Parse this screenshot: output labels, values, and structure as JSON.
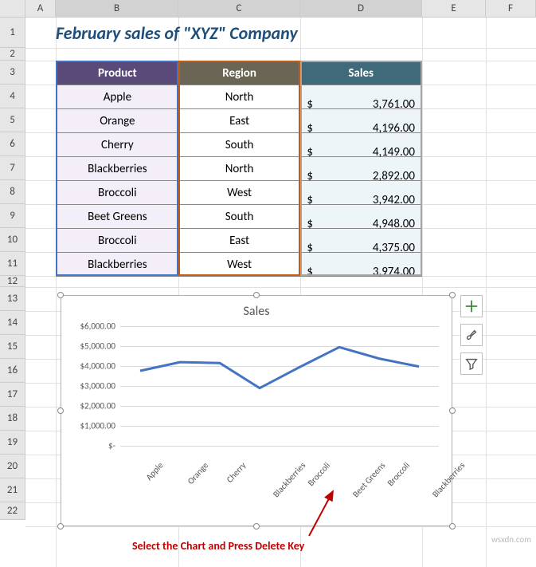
{
  "title": "February sales of \"XYZ\" Company",
  "columns": {
    "A": "A",
    "B": "B",
    "C": "C",
    "D": "D",
    "E": "E",
    "F": "F"
  },
  "rows": [
    "1",
    "2",
    "3",
    "4",
    "5",
    "6",
    "7",
    "8",
    "9",
    "10",
    "11",
    "12",
    "13",
    "14",
    "15",
    "16",
    "17",
    "18",
    "19",
    "20",
    "21",
    "22"
  ],
  "table": {
    "headers": {
      "b": "Product",
      "c": "Region",
      "d": "Sales"
    },
    "header_colors": {
      "b": "#5a4a7a",
      "c": "#6b6555",
      "d": "#3f6a7a"
    },
    "body_colors": {
      "b": "#f3eef8",
      "c": "#ffffff",
      "d": "#eef5f8"
    },
    "currency": "$",
    "rows": [
      {
        "product": "Apple",
        "region": "North",
        "sales": "3,761.00"
      },
      {
        "product": "Orange",
        "region": "East",
        "sales": "4,196.00"
      },
      {
        "product": "Cherry",
        "region": "South",
        "sales": "4,149.00"
      },
      {
        "product": "Blackberries",
        "region": "North",
        "sales": "2,892.00"
      },
      {
        "product": "Broccoli",
        "region": "West",
        "sales": "3,942.00"
      },
      {
        "product": "Beet Greens",
        "region": "South",
        "sales": "4,948.00"
      },
      {
        "product": "Broccoli",
        "region": "East",
        "sales": "4,375.00"
      },
      {
        "product": "Blackberries",
        "region": "West",
        "sales": "3,974.00"
      }
    ]
  },
  "chart": {
    "type": "line",
    "title": "Sales",
    "title_fontsize": 16,
    "line_color": "#4472c4",
    "line_width": 3,
    "grid_color": "#d9d9d9",
    "background_color": "#ffffff",
    "categories": [
      "Apple",
      "Orange",
      "Cherry",
      "Blackberries",
      "Broccoli",
      "Beet Greens",
      "Broccoli",
      "Blackberries"
    ],
    "values": [
      3761,
      4196,
      4149,
      2892,
      3942,
      4948,
      4375,
      3974
    ],
    "ylim": [
      0,
      6000
    ],
    "ytick_step": 1000,
    "yticks": [
      "$-",
      "$1,000.00",
      "$2,000.00",
      "$3,000.00",
      "$4,000.00",
      "$5,000.00",
      "$6,000.00"
    ],
    "label_fontsize": 11
  },
  "tools": {
    "plus": "chart-elements",
    "brush": "chart-styles",
    "funnel": "chart-filters"
  },
  "callout": "Select the Chart and Press Delete Key",
  "watermark": "wsxdn.com",
  "selection_colors": {
    "b": "#4472c4",
    "c": "#c55a11",
    "d": "#a5a5a5"
  }
}
